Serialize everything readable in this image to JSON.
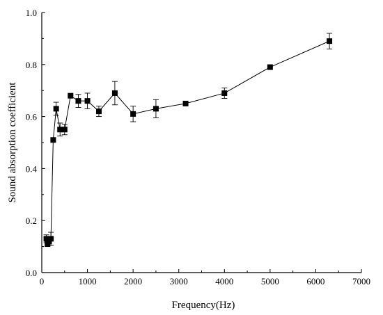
{
  "chart_data": {
    "type": "line",
    "title": "",
    "xlabel": "Frequency(Hz)",
    "ylabel": "Sound absorption coefficient",
    "xlim": [
      0,
      7000
    ],
    "ylim": [
      0.0,
      1.0
    ],
    "xticks": [
      0,
      1000,
      2000,
      3000,
      4000,
      5000,
      6000,
      7000
    ],
    "yticks": [
      0.0,
      0.2,
      0.4,
      0.6,
      0.8,
      1.0
    ],
    "xtick_labels": [
      "0",
      "1000",
      "2000",
      "3000",
      "4000",
      "5000",
      "6000",
      "7000"
    ],
    "ytick_labels": [
      "0.0",
      "0.2",
      "0.4",
      "0.6",
      "0.8",
      "1.0"
    ],
    "grid": false,
    "marker": "square",
    "color": "#000000",
    "series": [
      {
        "x": [
          100,
          125,
          160,
          200,
          250,
          315,
          400,
          500,
          630,
          800,
          1000,
          1250,
          1600,
          2000,
          2500,
          3150,
          4000,
          5000,
          6300
        ],
        "y": [
          0.13,
          0.11,
          0.12,
          0.13,
          0.51,
          0.63,
          0.55,
          0.55,
          0.68,
          0.66,
          0.66,
          0.62,
          0.69,
          0.61,
          0.63,
          0.65,
          0.69,
          0.79,
          0.89
        ],
        "error": [
          0.015,
          0.01,
          0.015,
          0.025,
          0.0,
          0.025,
          0.025,
          0.02,
          0.0,
          0.025,
          0.03,
          0.02,
          0.045,
          0.03,
          0.035,
          0.0,
          0.02,
          0.0,
          0.03
        ]
      }
    ]
  }
}
